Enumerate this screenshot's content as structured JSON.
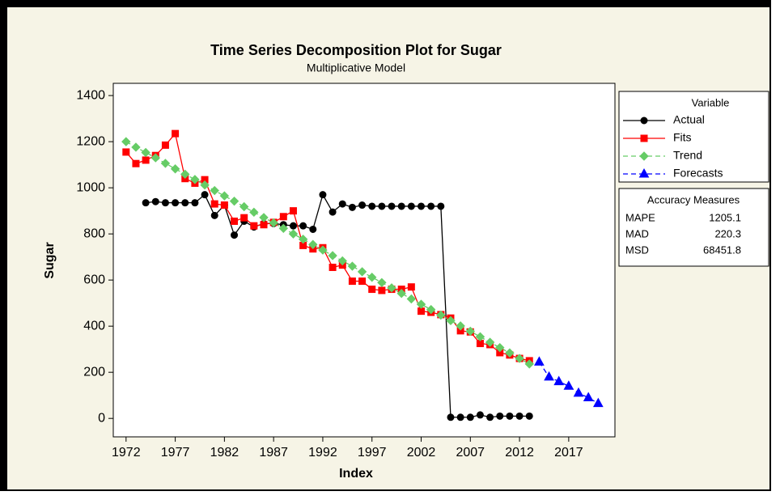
{
  "chart_data": {
    "type": "line",
    "title": "Time Series Decomposition Plot for Sugar",
    "subtitle": "Multiplicative Model",
    "x_label": "Index",
    "y_label": "Sugar",
    "xlim": [
      1970.7,
      2021.7
    ],
    "ylim": [
      -80,
      1453
    ],
    "xticks": [
      1972,
      1977,
      1982,
      1987,
      1992,
      1997,
      2002,
      2007,
      2012,
      2017
    ],
    "yticks": [
      0,
      200,
      400,
      600,
      800,
      1000,
      1200,
      1400
    ],
    "legend_title": "Variable",
    "x": [
      1972,
      1973,
      1974,
      1975,
      1976,
      1977,
      1978,
      1979,
      1980,
      1981,
      1982,
      1983,
      1984,
      1985,
      1986,
      1987,
      1988,
      1989,
      1990,
      1991,
      1992,
      1993,
      1994,
      1995,
      1996,
      1997,
      1998,
      1999,
      2000,
      2001,
      2002,
      2003,
      2004,
      2005,
      2006,
      2007,
      2008,
      2009,
      2010,
      2011,
      2012,
      2013,
      2014,
      2015,
      2016,
      2017,
      2018,
      2019,
      2020
    ],
    "series": [
      {
        "name": "Actual",
        "color": "#000000",
        "marker": "circle",
        "dashed": false,
        "values": [
          null,
          null,
          935,
          940,
          935,
          935,
          935,
          935,
          970,
          880,
          925,
          795,
          855,
          830,
          845,
          845,
          840,
          835,
          835,
          820,
          970,
          895,
          930,
          915,
          925,
          920,
          920,
          920,
          920,
          920,
          920,
          920,
          920,
          5,
          5,
          5,
          15,
          5,
          10,
          10,
          10,
          10,
          null,
          null,
          null,
          null,
          null,
          null,
          null
        ]
      },
      {
        "name": "Fits",
        "color": "#ff0000",
        "marker": "square",
        "dashed": false,
        "values": [
          1155,
          1105,
          1120,
          1140,
          1185,
          1235,
          1040,
          1020,
          1035,
          930,
          925,
          855,
          870,
          835,
          840,
          850,
          875,
          900,
          750,
          735,
          740,
          655,
          665,
          595,
          595,
          560,
          555,
          560,
          560,
          570,
          465,
          460,
          450,
          435,
          380,
          375,
          325,
          320,
          285,
          275,
          260,
          250,
          null,
          null,
          null,
          null,
          null,
          null,
          null
        ]
      },
      {
        "name": "Trend",
        "color": "#66cc66",
        "marker": "diamond",
        "dashed": true,
        "values": [
          1200,
          1176,
          1153,
          1130,
          1106,
          1082,
          1059,
          1036,
          1012,
          988,
          965,
          942,
          918,
          894,
          871,
          848,
          824,
          800,
          777,
          754,
          730,
          706,
          683,
          660,
          636,
          612,
          589,
          566,
          542,
          518,
          495,
          472,
          448,
          424,
          401,
          378,
          354,
          330,
          307,
          284,
          260,
          236,
          null,
          null,
          null,
          null,
          null,
          null,
          null
        ]
      },
      {
        "name": "Forecasts",
        "color": "#0000ff",
        "marker": "triangle",
        "dashed": true,
        "values": [
          null,
          null,
          null,
          null,
          null,
          null,
          null,
          null,
          null,
          null,
          null,
          null,
          null,
          null,
          null,
          null,
          null,
          null,
          null,
          null,
          null,
          null,
          null,
          null,
          null,
          null,
          null,
          null,
          null,
          null,
          null,
          null,
          null,
          null,
          null,
          null,
          null,
          null,
          null,
          null,
          null,
          null,
          245,
          180,
          160,
          140,
          110,
          90,
          65
        ]
      }
    ],
    "accuracy": {
      "title": "Accuracy Measures",
      "rows": [
        {
          "label": "MAPE",
          "value": 1205.1
        },
        {
          "label": "MAD",
          "value": 220.3
        },
        {
          "label": "MSD",
          "value": 68451.8
        }
      ]
    }
  }
}
